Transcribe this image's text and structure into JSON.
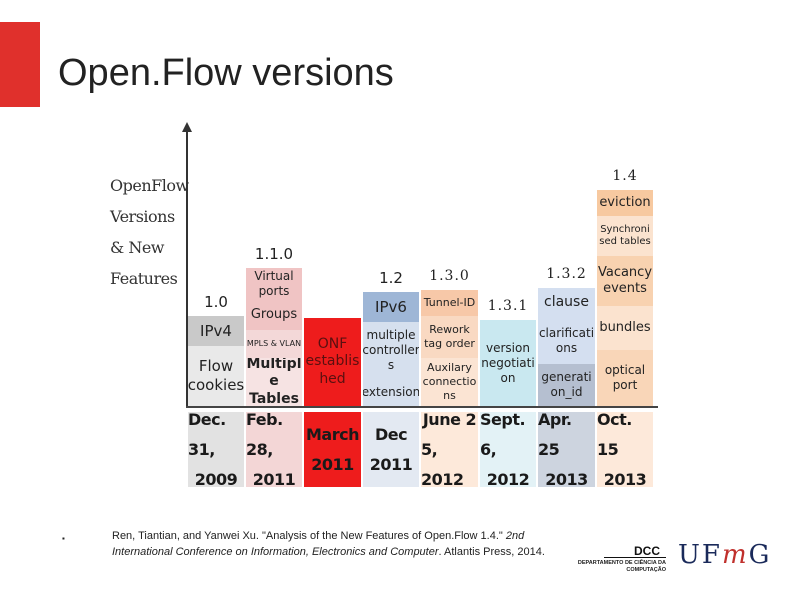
{
  "page": {
    "title": "Open.Flow versions"
  },
  "chart": {
    "side_label": [
      "OpenFlow",
      "Versions",
      "& New",
      "Features"
    ],
    "columns": [
      {
        "version": "1.0",
        "serif": false,
        "cells": [
          {
            "text": "IPv4",
            "bg": "#c9c9c9",
            "size": 15
          },
          {
            "text": "Flow cookies",
            "bg": "#e9e9e9",
            "size": 15
          }
        ],
        "date": [
          "Dec. 31,",
          "2009"
        ]
      },
      {
        "version": "1.1.0",
        "serif": false,
        "cells": [
          {
            "text": "Virtual ports",
            "bg": "#f0c4c4",
            "size": 12
          },
          {
            "text": "Groups",
            "bg": "#f0c4c4",
            "size": 13
          },
          {
            "text": "MPLS & VLAN",
            "bg": "#f3d8d8",
            "size": 8
          },
          {
            "text": "Multipl e Tables",
            "bg": "#f6e3e3",
            "size": 14,
            "bold": true
          }
        ],
        "date": [
          "Feb. 28,",
          "2011"
        ]
      },
      {
        "version": "",
        "serif": false,
        "cells": [
          {
            "text": "ONF establis hed",
            "bg": "#ee1c1c",
            "size": 14,
            "color": "#5a1010"
          }
        ],
        "date": [
          "March",
          "2011"
        ]
      },
      {
        "version": "1.2",
        "serif": false,
        "cells": [
          {
            "text": "IPv6",
            "bg": "#9eb6d6",
            "size": 15
          },
          {
            "text": "multiple controller s",
            "bg": "#d6e0ee",
            "size": 12
          },
          {
            "text": "extension",
            "bg": "#d6e0ee",
            "size": 12
          }
        ],
        "date": [
          "Dec",
          "2011"
        ]
      },
      {
        "version": "1.3.0",
        "serif": true,
        "cells": [
          {
            "text": "Tunnel-ID",
            "bg": "#f7c8a8",
            "size": 11
          },
          {
            "text": "Rework tag order",
            "bg": "#f9d9c2",
            "size": 11
          },
          {
            "text": "Auxilary connectio ns",
            "bg": "#fbe4d3",
            "size": 11
          }
        ],
        "date": [
          "June 2",
          "5, 2012"
        ]
      },
      {
        "version": "1.3.1",
        "serif": true,
        "cells": [
          {
            "text": "version negotiati on",
            "bg": "#c9e8f0",
            "size": 12
          }
        ],
        "date": [
          "Sept. 6,",
          "2012"
        ]
      },
      {
        "version": "1.3.2",
        "serif": true,
        "cells": [
          {
            "text": "clause",
            "bg": "#d4dff0",
            "size": 14
          },
          {
            "text": "clarificati ons",
            "bg": "#d4dff0",
            "size": 12
          },
          {
            "text": "generati on_id",
            "bg": "#b5bfd0",
            "size": 12
          }
        ],
        "date": [
          "Apr. 25",
          "2013"
        ]
      },
      {
        "version": "1.4",
        "serif": true,
        "cells": [
          {
            "text": "eviction",
            "bg": "#f7c9a0",
            "size": 13
          },
          {
            "text": "Synchroni sed tables",
            "bg": "#fbe3cf",
            "size": 10
          },
          {
            "text": "Vacancy events",
            "bg": "#f8d2b0",
            "size": 13
          },
          {
            "text": "bundles",
            "bg": "#fbe3cf",
            "size": 13
          },
          {
            "text": "optical port",
            "bg": "#f9d6b8",
            "size": 12
          }
        ],
        "date": [
          "Oct. 15",
          "2013"
        ]
      }
    ],
    "date_bgs": [
      "#e2e2e2",
      "#f3d6d6",
      "#ee1c1c",
      "#e3e9f2",
      "#fde9da",
      "#e3f2f6",
      "#cdd4df",
      "#fde9da"
    ]
  },
  "citation": {
    "bullet": "▪",
    "plain1": "Ren, Tiantian, and Yanwei Xu. \"Analysis of the New Features of Open.Flow 1.4.\" ",
    "italic": "2nd International Conference on Information, Electronics and Computer",
    "plain2": ". Atlantis Press, 2014."
  },
  "logos": {
    "dcc_text": "DCC",
    "dcc_subtitle": "DEPARTAMENTO DE CIÊNCIA DA COMPUTAÇÃO",
    "ufmg_u_f": "UF",
    "ufmg_m": "m",
    "ufmg_g": "G"
  }
}
